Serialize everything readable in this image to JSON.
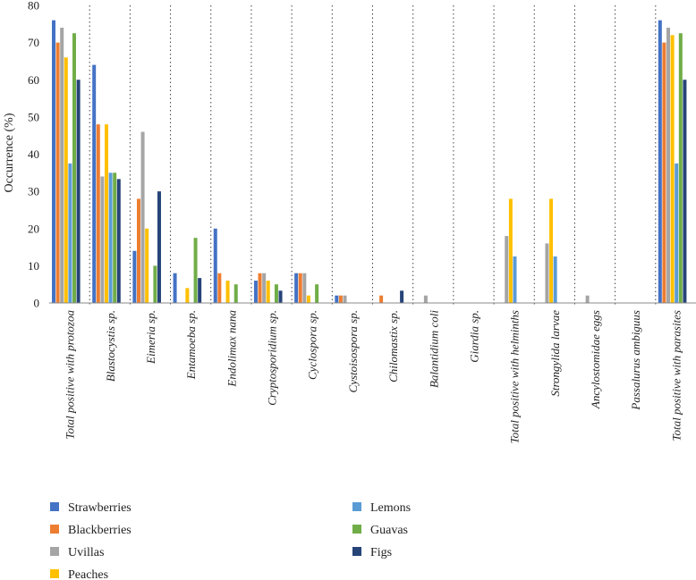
{
  "chart_data": {
    "type": "bar",
    "title": "",
    "xlabel": "",
    "ylabel": "Occurrence (%)",
    "ylim": [
      0,
      80
    ],
    "yticks": [
      0,
      10,
      20,
      30,
      40,
      50,
      60,
      70,
      80
    ],
    "grid": "dotted vertical separators between categories",
    "legend": "bottom-left, two columns",
    "categories": [
      "Total positive with protozoa",
      "Blastocystis sp.",
      "Eimeria sp.",
      "Entamoeba sp.",
      "Endolimax nana",
      "Cryptosporidium sp.",
      "Cyclospora sp.",
      "Cystoisospora sp.",
      "Chilomastix sp.",
      "Balantidium coli",
      "Giardia sp.",
      "Total positive with helminths",
      "Strongylida larvae",
      "Ancylostomidae eggs",
      "Passalurus ambiguus",
      "Total positive with parasites"
    ],
    "series": [
      {
        "name": "Strawberries",
        "color": "#4472C4",
        "values": [
          76,
          64,
          14,
          8,
          20,
          6,
          8,
          2,
          0,
          0,
          0,
          0,
          0,
          0,
          0,
          76
        ]
      },
      {
        "name": "Blackberries",
        "color": "#ED7D31",
        "values": [
          70,
          48,
          28,
          0,
          8,
          8,
          8,
          2,
          2,
          0,
          0,
          0,
          0,
          0,
          0,
          70
        ]
      },
      {
        "name": "Uvillas",
        "color": "#A5A5A5",
        "values": [
          74,
          34,
          46,
          0,
          0,
          8,
          8,
          2,
          0,
          2,
          0,
          18,
          16,
          2,
          0,
          74
        ]
      },
      {
        "name": "Peaches",
        "color": "#FFC000",
        "values": [
          66,
          48,
          20,
          4,
          6,
          6,
          2,
          0,
          0,
          0,
          0,
          28,
          28,
          0,
          0,
          72
        ]
      },
      {
        "name": "Lemons",
        "color": "#5B9BD5",
        "values": [
          37.5,
          35,
          0,
          0,
          0,
          0,
          0,
          0,
          0,
          0,
          0,
          12.5,
          12.5,
          0,
          0,
          37.5
        ]
      },
      {
        "name": "Guavas",
        "color": "#70AD47",
        "values": [
          72.5,
          35,
          10,
          17.5,
          5,
          5,
          5,
          0,
          0,
          0,
          0,
          0,
          0,
          0,
          0,
          72.5
        ]
      },
      {
        "name": "Figs",
        "color": "#264478",
        "values": [
          60,
          33.3,
          30,
          6.7,
          0,
          3.3,
          0,
          0,
          3.3,
          0,
          0,
          0,
          0,
          0,
          0,
          60
        ]
      }
    ]
  }
}
